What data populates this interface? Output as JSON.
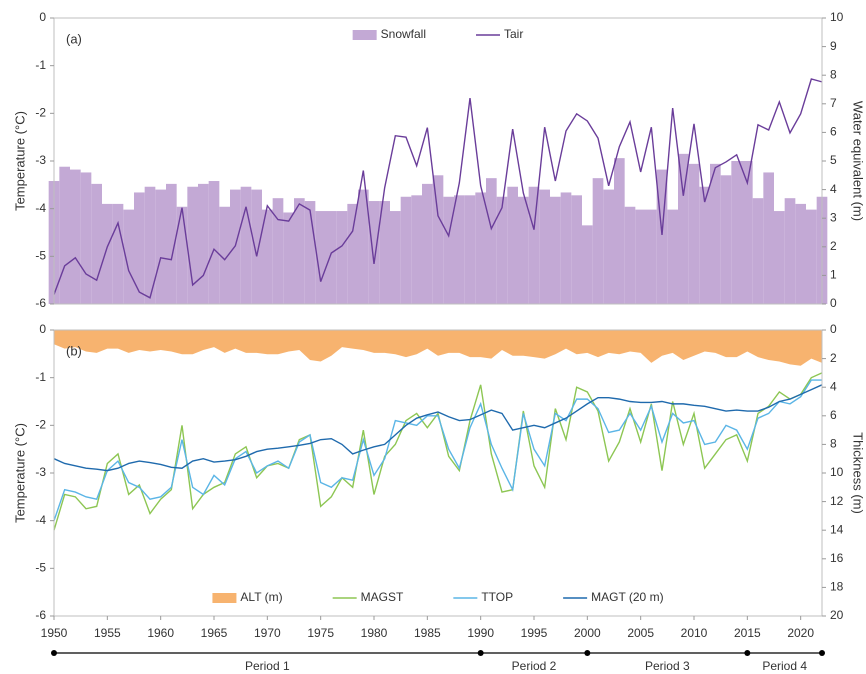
{
  "chart_data": [
    {
      "type": "combo",
      "annotation": "(a)",
      "ylabel": "Temperature (°C)",
      "y2label": "Water equivalent (m)",
      "xlim": [
        1950,
        2022
      ],
      "ylim": [
        -6,
        0
      ],
      "yticks": [
        -6,
        -5,
        -4,
        -3,
        -2,
        -1,
        0
      ],
      "y2lim": [
        0,
        10
      ],
      "y2ticks": [
        0,
        1,
        2,
        3,
        4,
        5,
        6,
        7,
        8,
        9,
        10
      ],
      "legend": "top",
      "x": [
        1950,
        1951,
        1952,
        1953,
        1954,
        1955,
        1956,
        1957,
        1958,
        1959,
        1960,
        1961,
        1962,
        1963,
        1964,
        1965,
        1966,
        1967,
        1968,
        1969,
        1970,
        1971,
        1972,
        1973,
        1974,
        1975,
        1976,
        1977,
        1978,
        1979,
        1980,
        1981,
        1982,
        1983,
        1984,
        1985,
        1986,
        1987,
        1988,
        1989,
        1990,
        1991,
        1992,
        1993,
        1994,
        1995,
        1996,
        1997,
        1998,
        1999,
        2000,
        2001,
        2002,
        2003,
        2004,
        2005,
        2006,
        2007,
        2008,
        2009,
        2010,
        2011,
        2012,
        2013,
        2014,
        2015,
        2016,
        2017,
        2018,
        2019,
        2020,
        2021,
        2022
      ],
      "series": [
        {
          "name": "Snowfall",
          "type": "bar",
          "axis": "y2",
          "color": "#c3a9d5",
          "values": [
            4.3,
            4.8,
            4.7,
            4.6,
            4.2,
            3.5,
            3.5,
            3.3,
            3.9,
            4.1,
            4.0,
            4.2,
            3.4,
            4.1,
            4.2,
            4.3,
            3.4,
            4.0,
            4.1,
            4.0,
            3.3,
            3.7,
            3.2,
            3.7,
            3.6,
            3.25,
            3.25,
            3.25,
            3.5,
            4.0,
            3.6,
            3.6,
            3.25,
            3.75,
            3.8,
            4.2,
            4.5,
            3.75,
            3.8,
            3.8,
            3.9,
            4.4,
            3.75,
            4.1,
            3.75,
            4.1,
            4.0,
            3.75,
            3.9,
            3.8,
            2.75,
            4.4,
            4.0,
            5.1,
            3.4,
            3.3,
            3.3,
            4.7,
            3.3,
            5.25,
            4.9,
            4.1,
            4.9,
            4.5,
            5.0,
            5.0,
            3.7,
            4.6,
            3.25,
            3.7,
            3.5,
            3.3,
            3.75
          ]
        },
        {
          "name": "Tair",
          "type": "line",
          "axis": "y",
          "color": "#6a3d9a",
          "values": [
            -5.8,
            -5.2,
            -5.03,
            -5.37,
            -5.5,
            -4.8,
            -4.3,
            -5.3,
            -5.75,
            -5.87,
            -5.03,
            -5.07,
            -3.98,
            -5.6,
            -5.4,
            -4.85,
            -5.07,
            -4.78,
            -3.96,
            -5.0,
            -3.94,
            -4.23,
            -4.26,
            -3.9,
            -4.03,
            -5.53,
            -4.93,
            -4.78,
            -4.47,
            -3.2,
            -5.16,
            -3.56,
            -2.47,
            -2.5,
            -3.1,
            -2.3,
            -4.15,
            -4.57,
            -3.46,
            -1.68,
            -3.52,
            -4.42,
            -3.98,
            -2.33,
            -3.67,
            -4.44,
            -2.29,
            -3.42,
            -2.37,
            -2.01,
            -2.16,
            -2.52,
            -3.52,
            -2.7,
            -2.18,
            -3.23,
            -2.29,
            -4.55,
            -1.89,
            -3.73,
            -2.22,
            -3.86,
            -3.14,
            -3.02,
            -2.87,
            -3.46,
            -2.24,
            -2.35,
            -1.76,
            -2.41,
            -2.01,
            -1.28,
            -1.34
          ]
        }
      ]
    },
    {
      "type": "combo",
      "annotation": "(b)",
      "ylabel": "Temperature (°C)",
      "y2label": "Thickness (m)",
      "xlim": [
        1950,
        2022
      ],
      "xticks": [
        1950,
        1955,
        1960,
        1965,
        1970,
        1975,
        1980,
        1985,
        1990,
        1995,
        2000,
        2005,
        2010,
        2015,
        2020
      ],
      "ylim": [
        -6,
        0
      ],
      "yticks": [
        -6,
        -5,
        -4,
        -3,
        -2,
        -1,
        0
      ],
      "y2lim": [
        0,
        20
      ],
      "y2ticks": [
        0,
        2,
        4,
        6,
        8,
        10,
        12,
        14,
        16,
        18,
        20
      ],
      "y2_inverted": true,
      "legend": "bottom",
      "x": [
        1950,
        1951,
        1952,
        1953,
        1954,
        1955,
        1956,
        1957,
        1958,
        1959,
        1960,
        1961,
        1962,
        1963,
        1964,
        1965,
        1966,
        1967,
        1968,
        1969,
        1970,
        1971,
        1972,
        1973,
        1974,
        1975,
        1976,
        1977,
        1978,
        1979,
        1980,
        1981,
        1982,
        1983,
        1984,
        1985,
        1986,
        1987,
        1988,
        1989,
        1990,
        1991,
        1992,
        1993,
        1994,
        1995,
        1996,
        1997,
        1998,
        1999,
        2000,
        2001,
        2002,
        2003,
        2004,
        2005,
        2006,
        2007,
        2008,
        2009,
        2010,
        2011,
        2012,
        2013,
        2014,
        2015,
        2016,
        2017,
        2018,
        2019,
        2020,
        2021,
        2022
      ],
      "series": [
        {
          "name": "ALT (m)",
          "type": "area",
          "axis": "y2",
          "color": "#f7b36f",
          "values": [
            1.0,
            1.3,
            1.2,
            1.5,
            1.6,
            1.3,
            1.3,
            1.6,
            1.4,
            1.5,
            1.4,
            1.5,
            1.7,
            1.7,
            1.4,
            1.2,
            1.6,
            1.3,
            1.6,
            1.6,
            1.7,
            1.7,
            1.5,
            1.4,
            2.1,
            2.2,
            1.8,
            1.2,
            1.3,
            1.4,
            1.6,
            1.6,
            1.7,
            1.9,
            1.7,
            1.3,
            1.8,
            1.6,
            1.6,
            1.9,
            1.9,
            2.0,
            1.4,
            1.8,
            1.8,
            1.9,
            2.0,
            1.7,
            1.3,
            1.7,
            1.6,
            1.9,
            1.6,
            1.7,
            1.5,
            1.6,
            2.3,
            1.8,
            1.6,
            2.1,
            1.8,
            1.5,
            1.6,
            1.9,
            1.9,
            1.5,
            1.9,
            2.1,
            2.2,
            2.4,
            2.5,
            2.0,
            2.3
          ]
        },
        {
          "name": "MAGST",
          "type": "line",
          "axis": "y",
          "color": "#8dc653",
          "values": [
            -4.2,
            -3.45,
            -3.5,
            -3.75,
            -3.7,
            -2.8,
            -2.6,
            -3.45,
            -3.25,
            -3.85,
            -3.55,
            -3.35,
            -2.0,
            -3.75,
            -3.45,
            -3.3,
            -3.2,
            -2.6,
            -2.45,
            -3.1,
            -2.85,
            -2.8,
            -2.9,
            -2.3,
            -2.2,
            -3.7,
            -3.5,
            -3.1,
            -3.3,
            -2.1,
            -3.45,
            -2.65,
            -2.4,
            -1.9,
            -1.75,
            -2.05,
            -1.75,
            -2.65,
            -2.95,
            -1.9,
            -1.15,
            -2.6,
            -3.4,
            -3.35,
            -1.7,
            -2.85,
            -3.3,
            -1.65,
            -2.3,
            -1.2,
            -1.3,
            -1.7,
            -2.75,
            -2.35,
            -1.65,
            -2.35,
            -1.55,
            -2.95,
            -1.5,
            -2.4,
            -1.75,
            -2.9,
            -2.6,
            -2.3,
            -2.2,
            -2.75,
            -1.75,
            -1.6,
            -1.3,
            -1.45,
            -1.35,
            -1.0,
            -0.9
          ]
        },
        {
          "name": "TTOP",
          "type": "line",
          "axis": "y",
          "color": "#5bb5e6",
          "values": [
            -4.0,
            -3.35,
            -3.4,
            -3.5,
            -3.55,
            -2.95,
            -2.75,
            -3.2,
            -3.3,
            -3.55,
            -3.5,
            -3.3,
            -2.3,
            -3.3,
            -3.45,
            -3.05,
            -3.25,
            -2.7,
            -2.55,
            -3.0,
            -2.85,
            -2.75,
            -2.9,
            -2.35,
            -2.2,
            -3.2,
            -3.3,
            -3.1,
            -3.15,
            -2.3,
            -3.05,
            -2.7,
            -1.9,
            -1.95,
            -2.0,
            -1.8,
            -1.8,
            -2.5,
            -2.9,
            -2.05,
            -1.55,
            -2.4,
            -2.9,
            -3.35,
            -1.75,
            -2.5,
            -2.85,
            -1.75,
            -1.9,
            -1.45,
            -1.45,
            -1.65,
            -2.15,
            -2.1,
            -1.75,
            -2.1,
            -1.6,
            -2.35,
            -1.75,
            -1.95,
            -1.9,
            -2.4,
            -2.35,
            -2.0,
            -2.1,
            -2.5,
            -1.85,
            -1.75,
            -1.5,
            -1.55,
            -1.4,
            -1.05,
            -1.05
          ]
        },
        {
          "name": "MAGT (20 m)",
          "type": "line",
          "axis": "y",
          "color": "#1f6aad",
          "values": [
            -2.7,
            -2.8,
            -2.85,
            -2.9,
            -2.92,
            -2.95,
            -2.9,
            -2.8,
            -2.75,
            -2.78,
            -2.82,
            -2.88,
            -2.9,
            -2.75,
            -2.7,
            -2.77,
            -2.75,
            -2.72,
            -2.65,
            -2.55,
            -2.5,
            -2.48,
            -2.45,
            -2.42,
            -2.38,
            -2.3,
            -2.28,
            -2.4,
            -2.6,
            -2.52,
            -2.45,
            -2.4,
            -2.2,
            -2.0,
            -1.85,
            -1.78,
            -1.72,
            -1.82,
            -1.9,
            -1.88,
            -1.78,
            -1.68,
            -1.75,
            -2.1,
            -2.05,
            -2.0,
            -2.05,
            -1.95,
            -1.85,
            -1.7,
            -1.55,
            -1.42,
            -1.42,
            -1.45,
            -1.5,
            -1.52,
            -1.52,
            -1.5,
            -1.55,
            -1.55,
            -1.58,
            -1.6,
            -1.65,
            -1.7,
            -1.68,
            -1.7,
            -1.7,
            -1.62,
            -1.5,
            -1.45,
            -1.35,
            -1.25,
            -1.15
          ]
        }
      ]
    }
  ],
  "periods": {
    "boundaries": [
      1950,
      1990,
      2000,
      2015,
      2022
    ],
    "labels": [
      "Period 1",
      "Period 2",
      "Period 3",
      "Period 4"
    ]
  }
}
